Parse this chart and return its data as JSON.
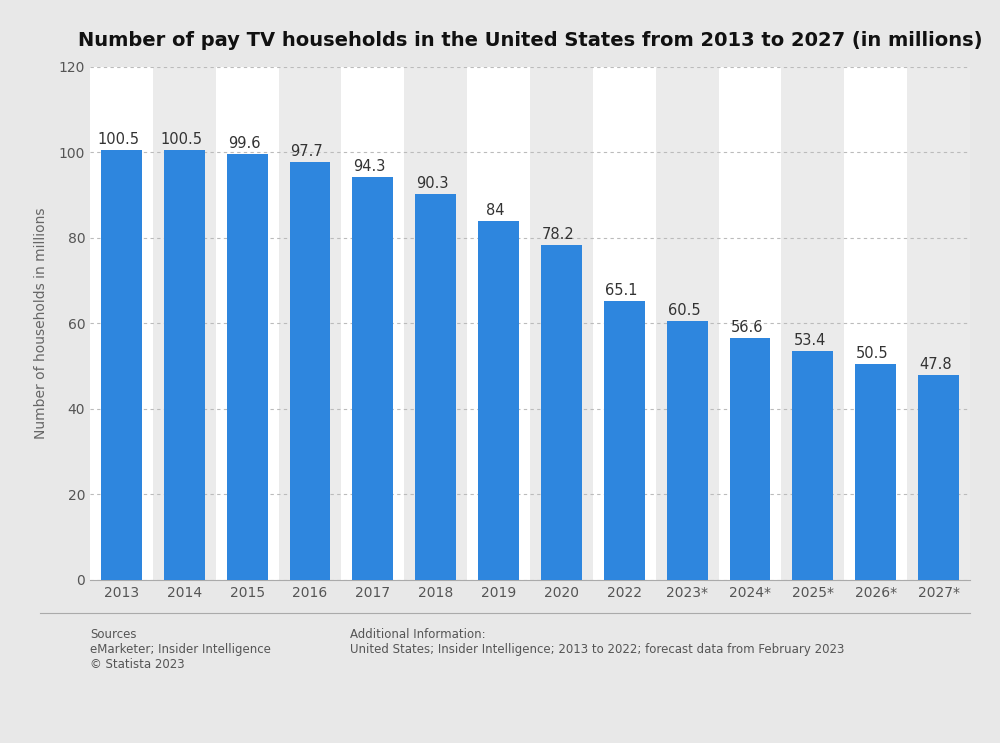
{
  "categories": [
    "2013",
    "2014",
    "2015",
    "2016",
    "2017",
    "2018",
    "2019",
    "2020",
    "2022",
    "2023*",
    "2024*",
    "2025*",
    "2026*",
    "2027*"
  ],
  "values": [
    100.5,
    100.5,
    99.6,
    97.7,
    94.3,
    90.3,
    84.0,
    78.2,
    65.1,
    60.5,
    56.6,
    53.4,
    50.5,
    47.8
  ],
  "bar_color": "#2e86de",
  "title": "Number of pay TV households in the United States from 2013 to 2027 (in millions)",
  "ylabel": "Number of households in millions",
  "ylim": [
    0,
    120
  ],
  "yticks": [
    0,
    20,
    40,
    60,
    80,
    100,
    120
  ],
  "figure_bg_color": "#e8e8e8",
  "plot_bg_color": "#ffffff",
  "alt_col_color": "#ebebeb",
  "title_fontsize": 14,
  "label_fontsize": 10,
  "tick_fontsize": 10,
  "value_fontsize": 10.5,
  "sources_text": "Sources\neMarketer; Insider Intelligence\n© Statista 2023",
  "additional_text": "Additional Information:\nUnited States; Insider Intelligence; 2013 to 2022; forecast data from February 2023",
  "grid_color": "#bbbbbb"
}
